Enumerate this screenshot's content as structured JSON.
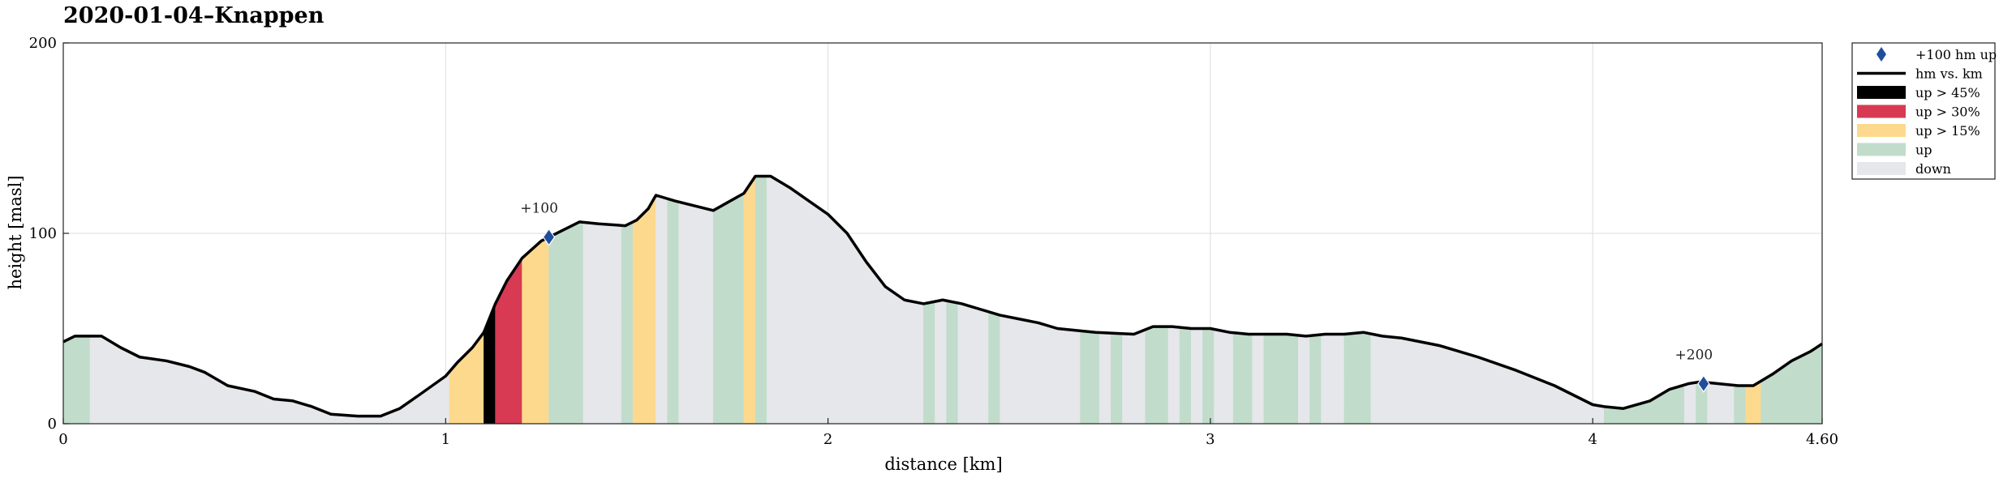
{
  "chart_data": {
    "type": "area",
    "title": "2020-01-04–Knappen",
    "xlabel": "distance [km]",
    "ylabel": "height [masl]",
    "xlim": [
      0,
      4.6
    ],
    "ylim": [
      0,
      200
    ],
    "xticks": [
      0,
      1,
      2,
      3,
      4,
      4.6
    ],
    "xtick_labels": [
      "0",
      "1",
      "2",
      "3",
      "4",
      "4.60"
    ],
    "yticks": [
      0,
      100,
      200
    ],
    "ytick_labels": [
      "0",
      "100",
      "200"
    ],
    "grid": true,
    "legend_position": "outside-top-right",
    "colors": {
      "down": "#e6e7ea",
      "up": "#c1dccb",
      "up15": "#fdd98e",
      "up30": "#d73a52",
      "up45": "#000000",
      "line": "#000000",
      "marker": "#1f4e9c"
    },
    "legend": [
      {
        "label": "+100 hm up",
        "kind": "marker"
      },
      {
        "label": "hm vs. km",
        "kind": "line"
      },
      {
        "label": "up > 45%",
        "kind": "up45"
      },
      {
        "label": "up > 30%",
        "kind": "up30"
      },
      {
        "label": "up > 15%",
        "kind": "up15"
      },
      {
        "label": "up",
        "kind": "up"
      },
      {
        "label": "down",
        "kind": "down"
      }
    ],
    "profile": {
      "x": [
        0,
        0.03,
        0.1,
        0.15,
        0.2,
        0.27,
        0.33,
        0.37,
        0.43,
        0.5,
        0.55,
        0.6,
        0.65,
        0.7,
        0.77,
        0.83,
        0.88,
        0.93,
        1.0,
        1.03,
        1.07,
        1.1,
        1.13,
        1.16,
        1.2,
        1.25,
        1.3,
        1.35,
        1.4,
        1.47,
        1.5,
        1.53,
        1.55,
        1.6,
        1.7,
        1.78,
        1.81,
        1.85,
        1.9,
        1.95,
        2.0,
        2.05,
        2.1,
        2.15,
        2.2,
        2.25,
        2.3,
        2.35,
        2.4,
        2.45,
        2.5,
        2.55,
        2.6,
        2.7,
        2.8,
        2.85,
        2.9,
        2.95,
        3.0,
        3.05,
        3.1,
        3.15,
        3.2,
        3.25,
        3.3,
        3.35,
        3.4,
        3.45,
        3.5,
        3.6,
        3.7,
        3.8,
        3.9,
        4.0,
        4.03,
        4.08,
        4.15,
        4.2,
        4.25,
        4.28,
        4.33,
        4.38,
        4.42,
        4.47,
        4.52,
        4.57,
        4.6
      ],
      "y": [
        43,
        46,
        46,
        40,
        35,
        33,
        30,
        27,
        20,
        17,
        13,
        12,
        9,
        5,
        4,
        4,
        8,
        15,
        25,
        32,
        40,
        48,
        63,
        75,
        87,
        96,
        101,
        106,
        105,
        104,
        107,
        113,
        120,
        117,
        112,
        121,
        130,
        130,
        124,
        117,
        110,
        100,
        85,
        72,
        65,
        63,
        65,
        63,
        60,
        57,
        55,
        53,
        50,
        48,
        47,
        51,
        51,
        50,
        50,
        48,
        47,
        47,
        47,
        46,
        47,
        47,
        48,
        46,
        45,
        41,
        35,
        28,
        20,
        10,
        9,
        8,
        12,
        18,
        21,
        22,
        21,
        20,
        20,
        26,
        33,
        38,
        42
      ]
    },
    "segments": [
      {
        "x0": 0.0,
        "x1": 0.07,
        "kind": "up"
      },
      {
        "x0": 0.07,
        "x1": 1.01,
        "kind": "down"
      },
      {
        "x0": 1.01,
        "x1": 1.1,
        "kind": "up15"
      },
      {
        "x0": 1.1,
        "x1": 1.13,
        "kind": "up45"
      },
      {
        "x0": 1.13,
        "x1": 1.2,
        "kind": "up30"
      },
      {
        "x0": 1.2,
        "x1": 1.27,
        "kind": "up15"
      },
      {
        "x0": 1.27,
        "x1": 1.36,
        "kind": "up"
      },
      {
        "x0": 1.36,
        "x1": 1.46,
        "kind": "down"
      },
      {
        "x0": 1.46,
        "x1": 1.49,
        "kind": "up"
      },
      {
        "x0": 1.49,
        "x1": 1.55,
        "kind": "up15"
      },
      {
        "x0": 1.55,
        "x1": 1.58,
        "kind": "down"
      },
      {
        "x0": 1.58,
        "x1": 1.61,
        "kind": "up"
      },
      {
        "x0": 1.61,
        "x1": 1.7,
        "kind": "down"
      },
      {
        "x0": 1.7,
        "x1": 1.78,
        "kind": "up"
      },
      {
        "x0": 1.78,
        "x1": 1.81,
        "kind": "up15"
      },
      {
        "x0": 1.81,
        "x1": 1.84,
        "kind": "up"
      },
      {
        "x0": 1.84,
        "x1": 2.25,
        "kind": "down"
      },
      {
        "x0": 2.25,
        "x1": 2.28,
        "kind": "up"
      },
      {
        "x0": 2.28,
        "x1": 2.31,
        "kind": "down"
      },
      {
        "x0": 2.31,
        "x1": 2.34,
        "kind": "up"
      },
      {
        "x0": 2.34,
        "x1": 2.42,
        "kind": "down"
      },
      {
        "x0": 2.42,
        "x1": 2.45,
        "kind": "up"
      },
      {
        "x0": 2.45,
        "x1": 2.66,
        "kind": "down"
      },
      {
        "x0": 2.66,
        "x1": 2.71,
        "kind": "up"
      },
      {
        "x0": 2.71,
        "x1": 2.74,
        "kind": "down"
      },
      {
        "x0": 2.74,
        "x1": 2.77,
        "kind": "up"
      },
      {
        "x0": 2.77,
        "x1": 2.83,
        "kind": "down"
      },
      {
        "x0": 2.83,
        "x1": 2.89,
        "kind": "up"
      },
      {
        "x0": 2.89,
        "x1": 2.92,
        "kind": "down"
      },
      {
        "x0": 2.92,
        "x1": 2.95,
        "kind": "up"
      },
      {
        "x0": 2.95,
        "x1": 2.98,
        "kind": "down"
      },
      {
        "x0": 2.98,
        "x1": 3.01,
        "kind": "up"
      },
      {
        "x0": 3.01,
        "x1": 3.06,
        "kind": "down"
      },
      {
        "x0": 3.06,
        "x1": 3.11,
        "kind": "up"
      },
      {
        "x0": 3.11,
        "x1": 3.14,
        "kind": "down"
      },
      {
        "x0": 3.14,
        "x1": 3.23,
        "kind": "up"
      },
      {
        "x0": 3.23,
        "x1": 3.26,
        "kind": "down"
      },
      {
        "x0": 3.26,
        "x1": 3.29,
        "kind": "up"
      },
      {
        "x0": 3.29,
        "x1": 3.35,
        "kind": "down"
      },
      {
        "x0": 3.35,
        "x1": 3.42,
        "kind": "up"
      },
      {
        "x0": 3.42,
        "x1": 4.03,
        "kind": "down"
      },
      {
        "x0": 4.03,
        "x1": 4.24,
        "kind": "up"
      },
      {
        "x0": 4.24,
        "x1": 4.27,
        "kind": "down"
      },
      {
        "x0": 4.27,
        "x1": 4.3,
        "kind": "up"
      },
      {
        "x0": 4.3,
        "x1": 4.37,
        "kind": "down"
      },
      {
        "x0": 4.37,
        "x1": 4.4,
        "kind": "up"
      },
      {
        "x0": 4.4,
        "x1": 4.44,
        "kind": "up15"
      },
      {
        "x0": 4.44,
        "x1": 4.6,
        "kind": "up"
      }
    ],
    "markers": [
      {
        "x": 1.27,
        "y": 98,
        "label": "+100"
      },
      {
        "x": 4.29,
        "y": 21,
        "label": "+200"
      }
    ]
  }
}
